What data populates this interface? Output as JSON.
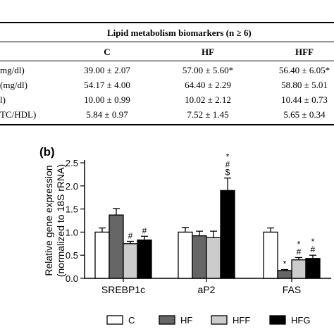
{
  "table": {
    "title": "Lipid metabolism biomarkers (n ≥ 6)",
    "columns": [
      "C",
      "HF",
      "HFF"
    ],
    "rows": [
      {
        "label": "mg/dl)",
        "values": [
          "39.00 ± 2.07",
          "57.00 ± 5.60*",
          "56.40 ± 6.05*"
        ]
      },
      {
        "label": "(mg/dl)",
        "values": [
          "54.17 ± 4.00",
          "64.40 ± 2.29",
          "58.80 ± 5.01"
        ]
      },
      {
        "label": "l)",
        "values": [
          "10.00 ± 0.99",
          "10.02 ± 2.12",
          "10.44 ± 0.73"
        ]
      },
      {
        "label": "TC/HDL)",
        "values": [
          "5.84 ± 0.97",
          "7.52 ± 1.45",
          "5.65 ± 0.34"
        ]
      }
    ]
  },
  "chart_data": {
    "type": "bar",
    "panel_label": "(b)",
    "ylabel": "Relative gene expression\n(normalized to 18S rRNA)",
    "ylim": [
      0,
      2.5
    ],
    "yticks": [
      "0.0",
      "0.5",
      "1.0",
      "1.5",
      "2.0",
      "2.5"
    ],
    "categories": [
      "SREBP1c",
      "aP2",
      "FAS"
    ],
    "series": [
      {
        "name": "C",
        "color": "#ffffff",
        "values": [
          1.0,
          1.0,
          1.0
        ],
        "errors": [
          0.09,
          0.1,
          0.09
        ],
        "annotations": [
          [],
          [],
          []
        ]
      },
      {
        "name": "HF",
        "color": "#666666",
        "values": [
          1.37,
          0.92,
          0.17
        ],
        "errors": [
          0.14,
          0.1,
          0.02
        ],
        "annotations": [
          [],
          [],
          [
            "*"
          ]
        ]
      },
      {
        "name": "HFF",
        "color": "#cccccc",
        "values": [
          0.75,
          0.88,
          0.4
        ],
        "errors": [
          0.05,
          0.14,
          0.05
        ],
        "annotations": [
          [
            "#"
          ],
          [],
          [
            "*",
            "#"
          ]
        ]
      },
      {
        "name": "HFG",
        "color": "#000000",
        "values": [
          0.83,
          1.9,
          0.43
        ],
        "errors": [
          0.08,
          0.27,
          0.07
        ],
        "annotations": [
          [
            "#"
          ],
          [
            "*",
            "#",
            "$"
          ],
          [
            "*",
            "#"
          ]
        ]
      }
    ]
  }
}
